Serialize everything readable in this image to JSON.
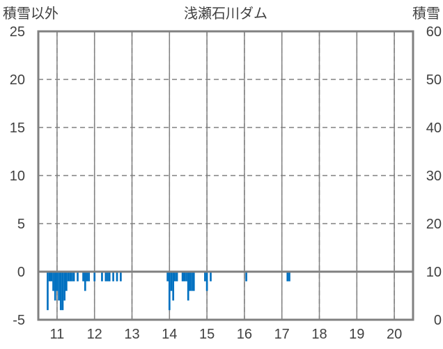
{
  "chart_data": {
    "type": "bar",
    "title": "浅瀬石川ダム",
    "left_axis_label": "積雪以外",
    "right_axis_label": "積雪",
    "x_ticks": [
      "11",
      "12",
      "13",
      "14",
      "15",
      "16",
      "17",
      "18",
      "19",
      "20"
    ],
    "x_range": [
      10.5,
      20.5
    ],
    "ylim_left": [
      -5,
      25
    ],
    "yticks_left": [
      "25",
      "20",
      "15",
      "10",
      "5",
      "0",
      "-5"
    ],
    "ylim_right": [
      0,
      60
    ],
    "yticks_right": [
      "60",
      "50",
      "40",
      "30",
      "20",
      "10",
      "0"
    ],
    "grid": true,
    "colors": {
      "bar": "#0070c0",
      "frame": "#808080",
      "grid": "#808080",
      "text": "#404040"
    },
    "series": [
      {
        "values": [
          [
            10.75,
            -4
          ],
          [
            10.8,
            -1
          ],
          [
            10.85,
            -1
          ],
          [
            10.9,
            -2
          ],
          [
            10.95,
            -3
          ],
          [
            11.0,
            -2
          ],
          [
            11.05,
            -3
          ],
          [
            11.1,
            -4
          ],
          [
            11.15,
            -4
          ],
          [
            11.2,
            -3
          ],
          [
            11.25,
            -2
          ],
          [
            11.3,
            -1
          ],
          [
            11.35,
            -1
          ],
          [
            11.4,
            -1
          ],
          [
            11.45,
            -1
          ],
          [
            11.55,
            -1
          ],
          [
            11.7,
            -1
          ],
          [
            11.75,
            -2
          ],
          [
            11.8,
            -1
          ],
          [
            11.85,
            -1
          ],
          [
            12.0,
            -1
          ],
          [
            12.2,
            -1
          ],
          [
            12.3,
            -1
          ],
          [
            12.35,
            -1
          ],
          [
            12.4,
            -1
          ],
          [
            12.5,
            -1
          ],
          [
            12.6,
            -1
          ],
          [
            12.7,
            -1
          ],
          [
            13.95,
            -1
          ],
          [
            14.0,
            -4
          ],
          [
            14.05,
            -2
          ],
          [
            14.1,
            -3
          ],
          [
            14.15,
            -1
          ],
          [
            14.2,
            -1
          ],
          [
            14.35,
            -1
          ],
          [
            14.4,
            -1
          ],
          [
            14.45,
            -1
          ],
          [
            14.5,
            -3
          ],
          [
            14.55,
            -2
          ],
          [
            14.6,
            -2
          ],
          [
            14.65,
            -2
          ],
          [
            14.95,
            -1
          ],
          [
            15.0,
            -2
          ],
          [
            15.1,
            -1
          ],
          [
            16.05,
            -1
          ],
          [
            17.15,
            -1
          ],
          [
            17.2,
            -1
          ]
        ]
      }
    ]
  }
}
